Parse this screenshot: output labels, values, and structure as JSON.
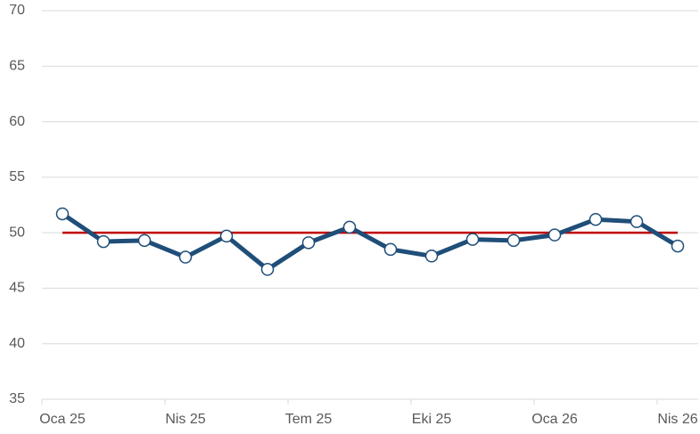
{
  "chart_data": {
    "type": "line",
    "categories": [
      "Oca 25",
      null,
      null,
      "Nis 25",
      null,
      null,
      "Tem 25",
      null,
      null,
      "Eki 25",
      null,
      null,
      "Oca 26",
      null,
      null,
      "Nis 26"
    ],
    "series": [
      {
        "color": "#1f4e79",
        "values": [
          51.7,
          49.2,
          49.3,
          47.8,
          49.7,
          46.7,
          49.1,
          50.5,
          48.5,
          47.9,
          49.4,
          49.3,
          49.8,
          51.2,
          51.0,
          48.8
        ]
      }
    ],
    "reference_line": {
      "value": 50,
      "color": "#c00000"
    },
    "ylim": [
      35,
      70
    ],
    "yticks": [
      35,
      40,
      45,
      50,
      55,
      60,
      65,
      70
    ],
    "grid": true
  }
}
